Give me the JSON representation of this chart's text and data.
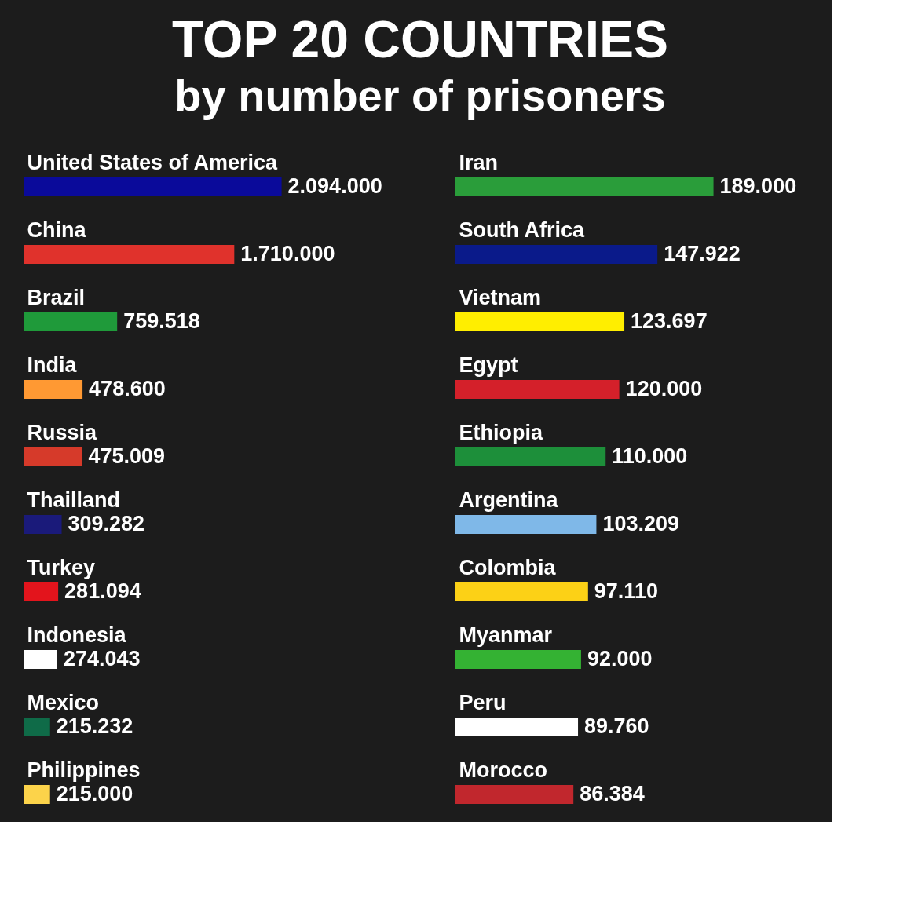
{
  "chart_data": [
    {
      "type": "bar",
      "orientation": "horizontal",
      "title": "TOP 20 COUNTRIES",
      "subtitle": "by number of prisoners",
      "categories": [
        "United States of America",
        "China",
        "Brazil",
        "India",
        "Russia",
        "Thailland",
        "Turkey",
        "Indonesia",
        "Mexico",
        "Philippines"
      ],
      "values": [
        2094000,
        1710000,
        759518,
        478600,
        475009,
        309282,
        281094,
        274043,
        215232,
        215000
      ],
      "value_labels": [
        "2.094.000",
        "1.710.000",
        "759.518",
        "478.600",
        "475.009",
        "309.282",
        "281.094",
        "274.043",
        "215.232",
        "215.000"
      ],
      "colors": [
        "#0a0a9a",
        "#e0322c",
        "#1f9a3a",
        "#ff9933",
        "#d63a2a",
        "#1a1a7a",
        "#e3141c",
        "#ffffff",
        "#0f6b48",
        "#fcd34a"
      ]
    },
    {
      "type": "bar",
      "orientation": "horizontal",
      "categories": [
        "Iran",
        "South Africa",
        "Vietnam",
        "Egypt",
        "Ethiopia",
        "Argentina",
        "Colombia",
        "Myanmar",
        "Peru",
        "Morocco"
      ],
      "values": [
        189000,
        147922,
        123697,
        120000,
        110000,
        103209,
        97110,
        92000,
        89760,
        86384
      ],
      "value_labels": [
        "189.000",
        "147.922",
        "123.697",
        "120.000",
        "110.000",
        "103.209",
        "97.110",
        "92.000",
        "89.760",
        "86.384"
      ],
      "colors": [
        "#2a9d3a",
        "#0a1a8a",
        "#ffee00",
        "#d4202a",
        "#1d8f3a",
        "#7fb8e8",
        "#fcd116",
        "#34b233",
        "#ffffff",
        "#c1272d"
      ]
    }
  ]
}
